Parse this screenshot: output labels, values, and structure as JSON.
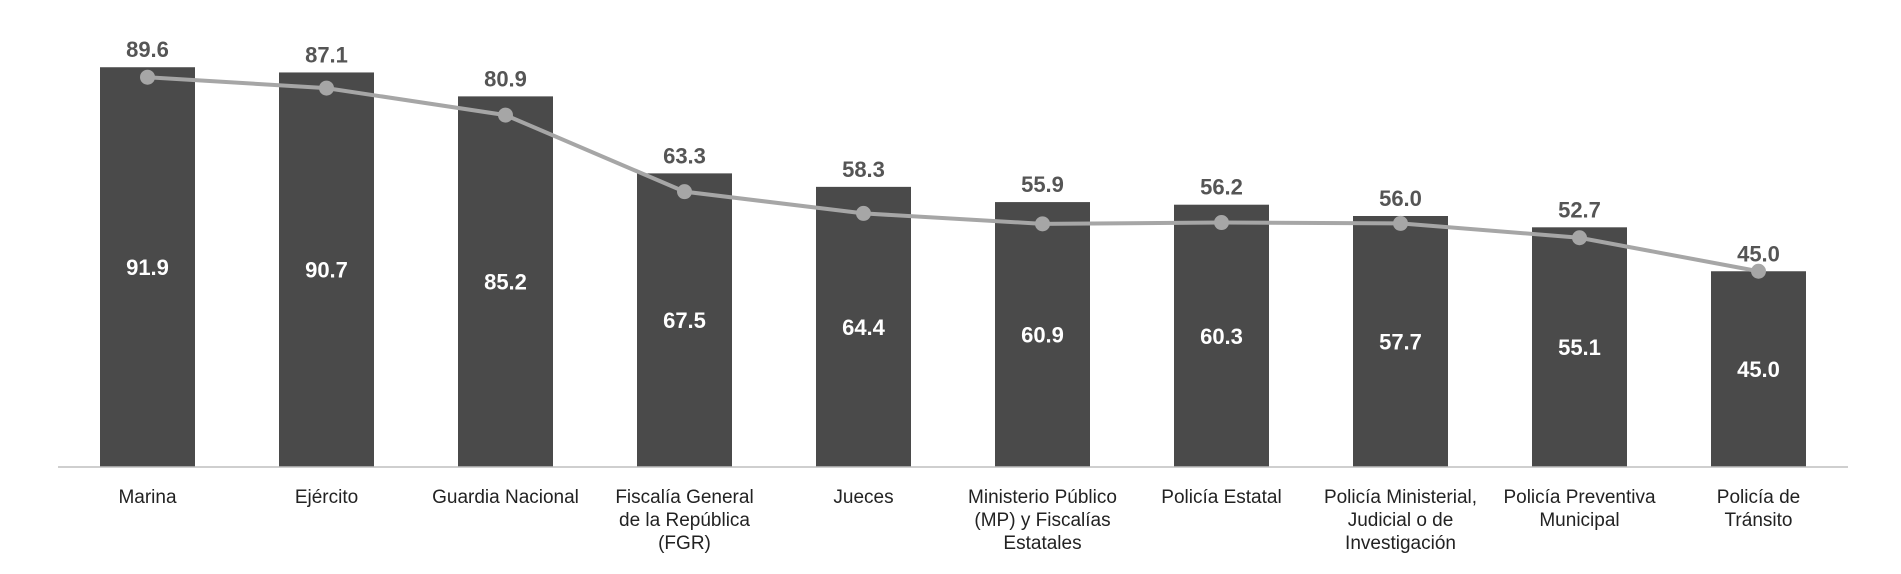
{
  "chart_data": {
    "type": "bar",
    "categories": [
      [
        "Marina"
      ],
      [
        "Ejército"
      ],
      [
        "Guardia Nacional"
      ],
      [
        "Fiscalía General",
        "de la República",
        "(FGR)"
      ],
      [
        "Jueces"
      ],
      [
        "Ministerio Público",
        "(MP) y Fiscalías",
        "Estatales"
      ],
      [
        "Policía Estatal"
      ],
      [
        "Policía Ministerial,",
        "Judicial o de",
        "Investigación"
      ],
      [
        "Policía Preventiva",
        "Municipal"
      ],
      [
        "Policía de",
        "Tránsito"
      ]
    ],
    "series": [
      {
        "type": "bar",
        "values": [
          91.9,
          90.7,
          85.2,
          67.5,
          64.4,
          60.9,
          60.3,
          57.7,
          55.1,
          45.0
        ],
        "color": "#4a4a4a"
      },
      {
        "type": "line",
        "values": [
          89.6,
          87.1,
          80.9,
          63.3,
          58.3,
          55.9,
          56.2,
          56.0,
          52.7,
          45.0
        ],
        "color": "#a6a6a6"
      }
    ],
    "ylim": [
      0,
      100
    ],
    "grid": false,
    "title": "",
    "xlabel": "",
    "ylabel": ""
  }
}
